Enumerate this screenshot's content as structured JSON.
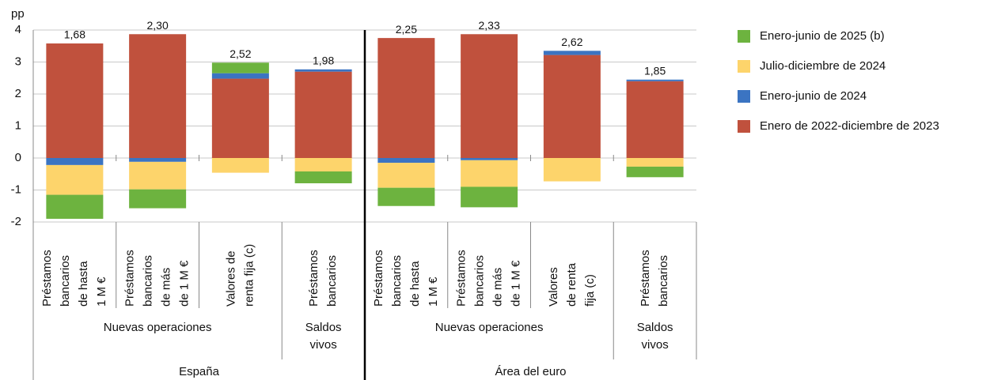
{
  "chart_data": {
    "type": "stacked-bar",
    "y_label": "pp",
    "ylim": [
      -2,
      4
    ],
    "yticks": [
      -2,
      -1,
      0,
      1,
      2,
      3,
      4
    ],
    "grid": true,
    "legend": "right",
    "category_groups": [
      {
        "label": "España",
        "groups": [
          {
            "label": [
              "Nuevas operaciones"
            ],
            "categories": [
              [
                "Préstamos",
                "bancarios",
                "de hasta",
                "1 M €"
              ],
              [
                "Préstamos",
                "bancarios",
                "de más",
                "de 1 M €"
              ],
              [
                "Valores de",
                "renta fija (c)"
              ]
            ]
          },
          {
            "label": [
              "Saldos",
              "vivos"
            ],
            "categories": [
              [
                "Préstamos",
                "bancarios"
              ]
            ]
          }
        ]
      },
      {
        "label": "Área del euro",
        "groups": [
          {
            "label": [
              "Nuevas operaciones"
            ],
            "categories": [
              [
                "Préstamos",
                "bancarios",
                "de hasta",
                "1 M €"
              ],
              [
                "Préstamos",
                "bancarios",
                "de más",
                "de 1 M €"
              ],
              [
                "Valores",
                "de renta",
                "fija (c)"
              ]
            ]
          },
          {
            "label": [
              "Saldos",
              "vivos"
            ],
            "categories": [
              [
                "Préstamos",
                "bancarios"
              ]
            ]
          }
        ]
      }
    ],
    "series": [
      {
        "name": "Enero-junio de 2025 (b)",
        "color": "#6db33f",
        "values": [
          -0.75,
          -0.59,
          0.33,
          -0.37,
          -0.57,
          -0.64,
          0,
          -0.33
        ]
      },
      {
        "name": "Julio-diciembre de 2024",
        "color": "#fdd46b",
        "values": [
          -0.93,
          -0.86,
          -0.46,
          -0.42,
          -0.78,
          -0.83,
          -0.73,
          -0.27
        ]
      },
      {
        "name": "Enero-junio de 2024",
        "color": "#3b74c2",
        "values": [
          -0.22,
          -0.12,
          0.17,
          0.07,
          -0.15,
          -0.07,
          0.13,
          0.05
        ]
      },
      {
        "name": "Enero de 2022-diciembre de 2023",
        "color": "#c0513d",
        "values": [
          3.58,
          3.87,
          2.48,
          2.7,
          3.75,
          3.87,
          3.22,
          2.4
        ]
      }
    ],
    "totals": [
      1.68,
      2.3,
      2.52,
      1.98,
      2.25,
      2.33,
      2.62,
      1.85
    ],
    "value_labels": [
      "1,68",
      "2,30",
      "2,52",
      "1,98",
      "2,25",
      "2,33",
      "2,62",
      "1,85"
    ]
  }
}
